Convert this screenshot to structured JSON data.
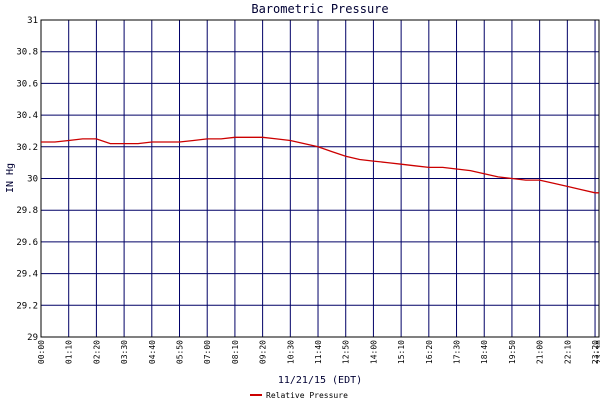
{
  "chart_data": {
    "type": "line",
    "title": "Barometric Pressure",
    "xlabel": "11/21/15 (EDT)",
    "ylabel": "IN Hg",
    "ylim": [
      29,
      31
    ],
    "yticks": [
      "29",
      "29.2",
      "29.4",
      "29.6",
      "29.8",
      "30",
      "30.2",
      "30.4",
      "30.6",
      "30.8",
      "31"
    ],
    "xticks": [
      "00:00",
      "01:10",
      "02:20",
      "03:30",
      "04:40",
      "05:50",
      "07:00",
      "08:10",
      "09:20",
      "10:30",
      "11:40",
      "12:50",
      "14:00",
      "15:10",
      "16:20",
      "17:30",
      "18:40",
      "19:50",
      "21:00",
      "22:10",
      "23:20",
      "23:30"
    ],
    "grid": true,
    "legend_position": "bottom",
    "series": [
      {
        "name": "Relative Pressure",
        "color": "#cc0000",
        "x": [
          "00:00",
          "00:35",
          "01:10",
          "01:45",
          "02:20",
          "02:55",
          "03:30",
          "04:05",
          "04:40",
          "05:15",
          "05:50",
          "06:25",
          "07:00",
          "07:35",
          "08:10",
          "08:45",
          "09:20",
          "09:55",
          "10:30",
          "11:05",
          "11:40",
          "12:15",
          "12:50",
          "13:25",
          "14:00",
          "14:35",
          "15:10",
          "15:45",
          "16:20",
          "16:55",
          "17:30",
          "18:05",
          "18:40",
          "19:15",
          "19:50",
          "20:25",
          "21:00",
          "21:35",
          "22:10",
          "22:45",
          "23:20",
          "23:30"
        ],
        "values": [
          30.23,
          30.23,
          30.24,
          30.25,
          30.25,
          30.22,
          30.22,
          30.22,
          30.23,
          30.23,
          30.23,
          30.24,
          30.25,
          30.25,
          30.26,
          30.26,
          30.26,
          30.25,
          30.24,
          30.22,
          30.2,
          30.17,
          30.14,
          30.12,
          30.11,
          30.1,
          30.09,
          30.08,
          30.07,
          30.07,
          30.06,
          30.05,
          30.03,
          30.01,
          30.0,
          29.99,
          29.99,
          29.97,
          29.95,
          29.93,
          29.91,
          29.91
        ]
      }
    ]
  },
  "colors": {
    "grid": "#000066",
    "frame": "#000000",
    "series": "#cc0000"
  }
}
